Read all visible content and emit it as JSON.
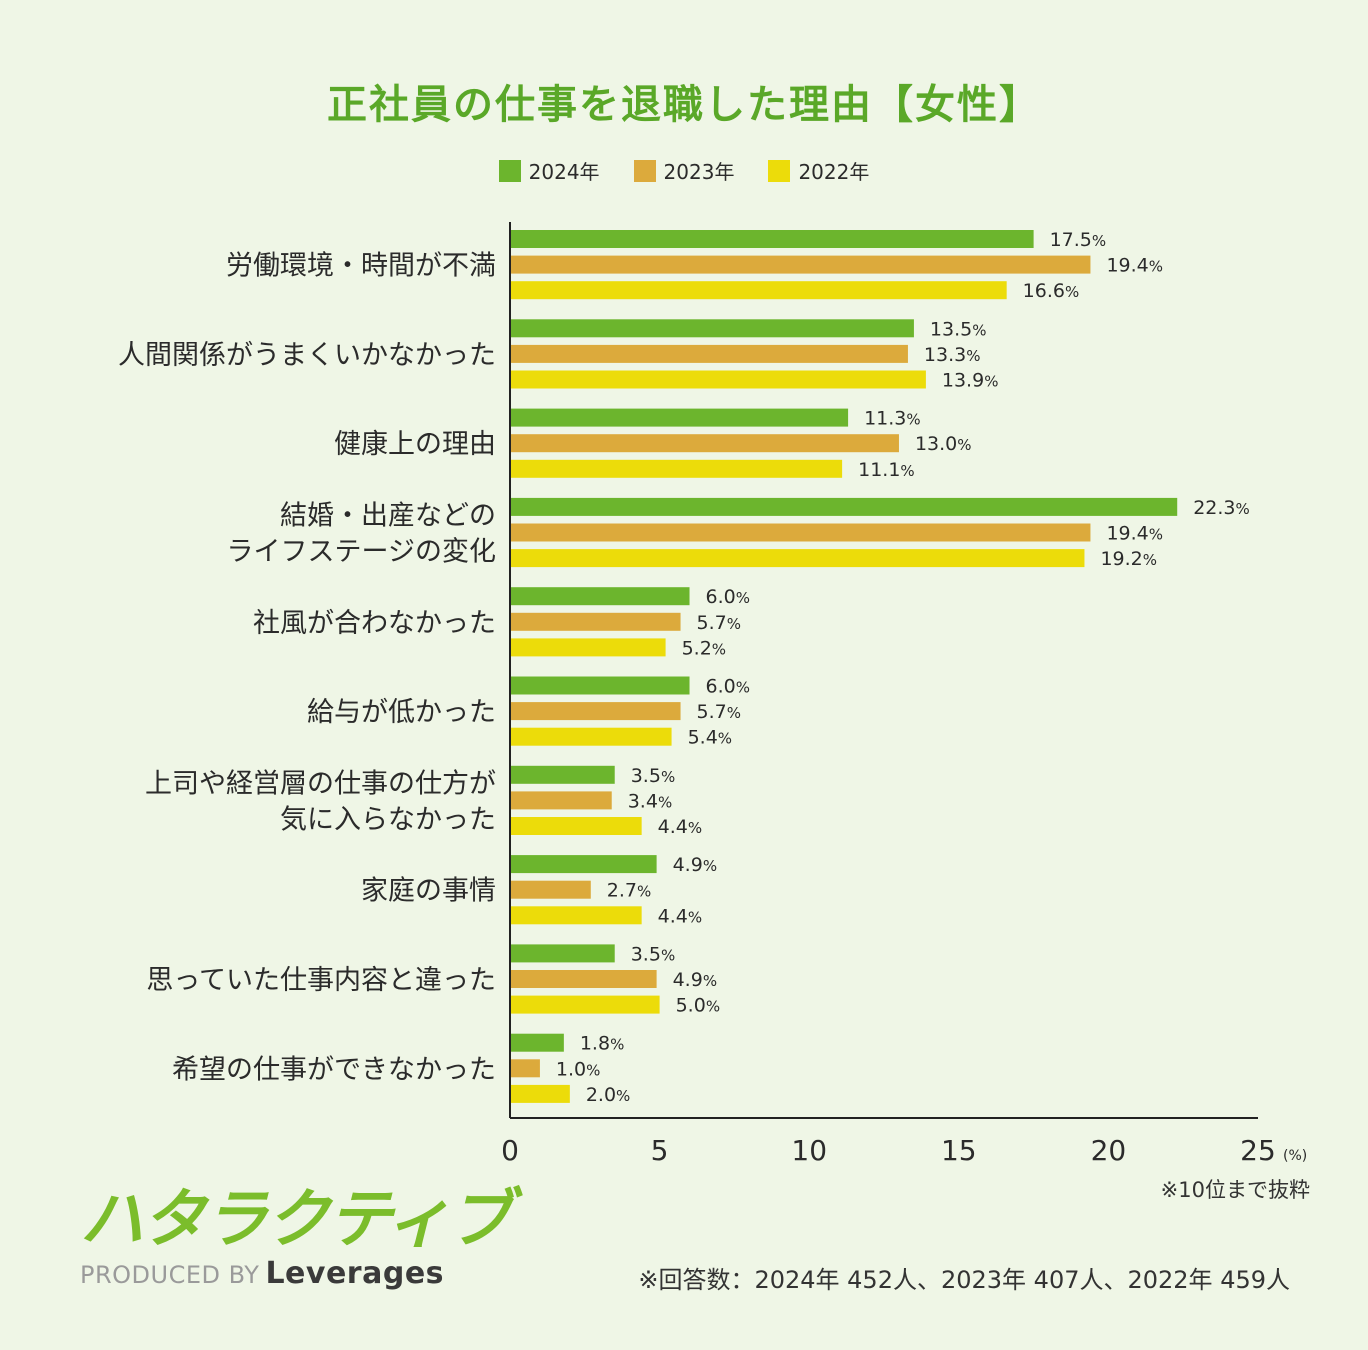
{
  "chart_data": {
    "type": "bar",
    "orientation": "horizontal",
    "title": "正社員の仕事を退職した理由【女性】",
    "categories": [
      [
        "労働環境・時間が不満"
      ],
      [
        "人間関係がうまくいかなかった"
      ],
      [
        "健康上の理由"
      ],
      [
        "結婚・出産などの",
        "ライフステージの変化"
      ],
      [
        "社風が合わなかった"
      ],
      [
        "給与が低かった"
      ],
      [
        "上司や経営層の仕事の仕方が",
        "気に入らなかった"
      ],
      [
        "家庭の事情"
      ],
      [
        "思っていた仕事内容と違った"
      ],
      [
        "希望の仕事ができなかった"
      ]
    ],
    "series": [
      {
        "name": "2024年",
        "color": "#6cb52d",
        "values": [
          17.5,
          13.5,
          11.3,
          22.3,
          6.0,
          6.0,
          3.5,
          4.9,
          3.5,
          1.8
        ]
      },
      {
        "name": "2023年",
        "color": "#dcaa3c",
        "values": [
          19.4,
          13.3,
          13.0,
          19.4,
          5.7,
          5.7,
          3.4,
          2.7,
          4.9,
          1.0
        ]
      },
      {
        "name": "2022年",
        "color": "#ecdc0a",
        "values": [
          16.6,
          13.9,
          11.1,
          19.2,
          5.2,
          5.4,
          4.4,
          4.4,
          5.0,
          2.0
        ]
      }
    ],
    "value_suffix": "%",
    "xlim": [
      0,
      25
    ],
    "xticks": [
      0,
      5,
      10,
      15,
      20,
      25
    ],
    "x_unit": "(%)",
    "legend_position": "top-center",
    "grid": false
  },
  "notes": {
    "top10": "※10位まで抜粋",
    "respondents": "※回答数：2024年 452人、2023年 407人、2022年 459人"
  },
  "branding": {
    "logo": "ハタラクティブ",
    "produced_by": "PRODUCED BY",
    "company": "Leverages"
  }
}
